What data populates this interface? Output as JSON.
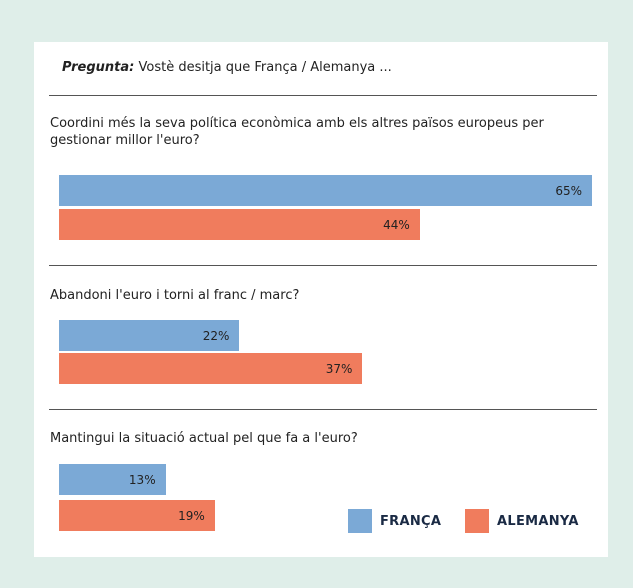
{
  "header": {
    "prefix": "Pregunta:",
    "text": " Vostè desitja que França / Alemanya ..."
  },
  "chart_data": {
    "type": "bar",
    "orientation": "horizontal",
    "categories": [
      "Coordini més la seva política econòmica amb els altres països europeus per gestionar millor l'euro?",
      "Abandoni l'euro i torni al franc / marc?",
      "Mantingui la situació actual pel que fa a l'euro?"
    ],
    "series": [
      {
        "name": "FRANÇA",
        "values": [
          65,
          22,
          13
        ],
        "labels": [
          "65%",
          "22%",
          "13%"
        ],
        "color": "#7ba9d6"
      },
      {
        "name": "ALEMANYA",
        "values": [
          44,
          37,
          19
        ],
        "labels": [
          "44%",
          "37%",
          "19%"
        ],
        "color": "#f07c5d"
      }
    ],
    "unit": "%",
    "xlim": [
      0,
      65
    ],
    "legend_position": "bottom-right",
    "grid": false
  }
}
